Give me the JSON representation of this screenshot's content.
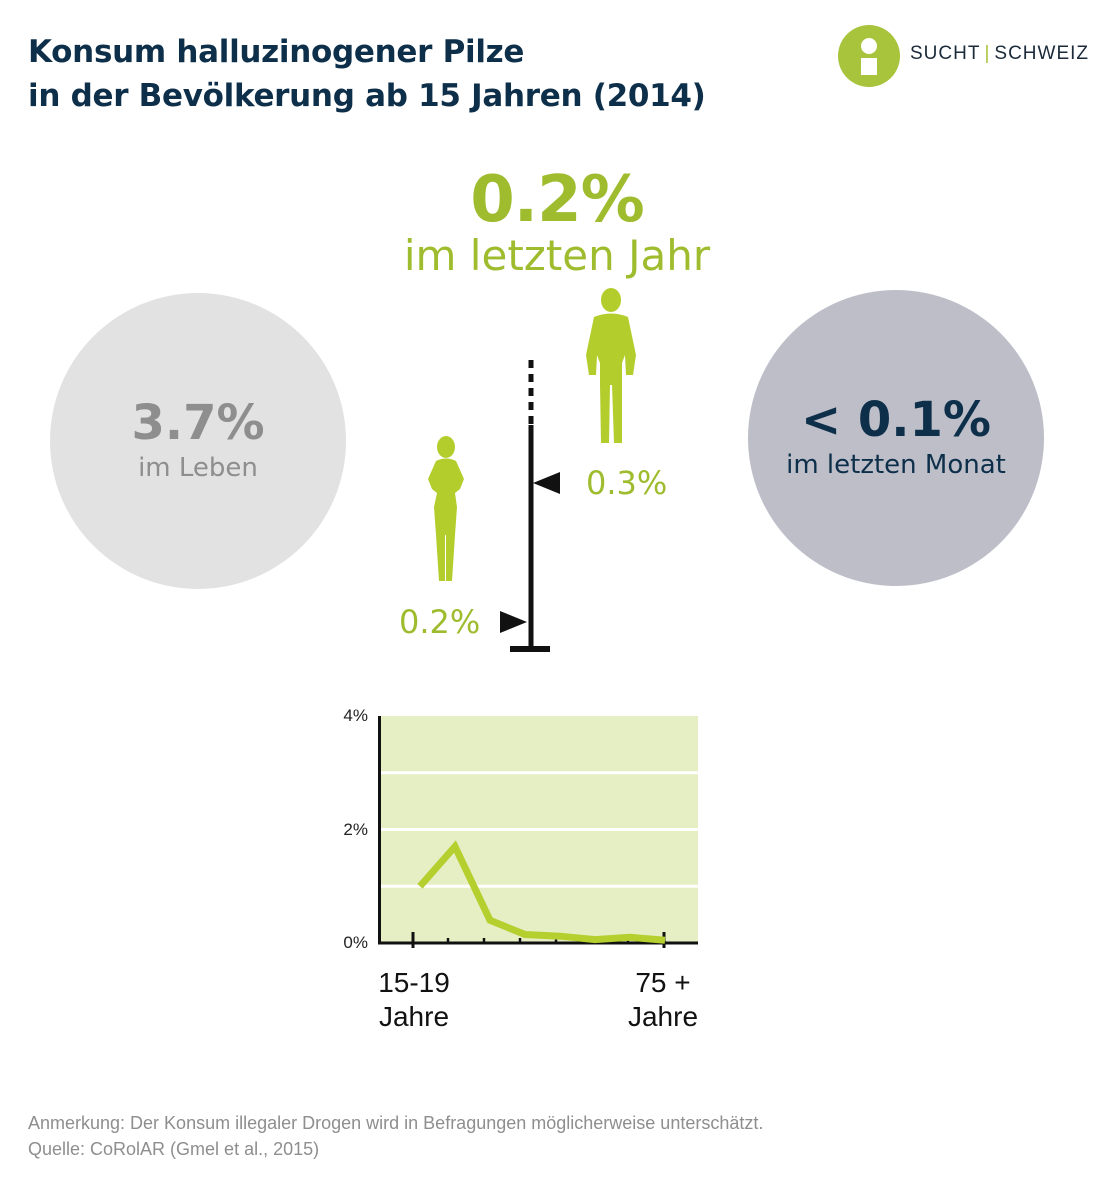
{
  "title": {
    "line1": "Konsum halluzinogener Pilze",
    "line2": "in der Bevölkerung ab 15 Jahren (2014)"
  },
  "logo": {
    "text_left": "SUCHT",
    "separator": "|",
    "text_right": "SCHWEIZ"
  },
  "headline_stat": {
    "value": "0.2%",
    "label": "im letzten Jahr"
  },
  "lifetime": {
    "value": "3.7%",
    "label": "im Leben"
  },
  "last_month": {
    "value": "< 0.1%",
    "label": "im letzten Monat"
  },
  "gender": {
    "male_value": "0.3%",
    "female_value": "0.2%"
  },
  "colors": {
    "accent_green": "#9ebc2e",
    "line_green": "#b5cf2e",
    "panel_green": "#e6eec4",
    "navy": "#0d2f4a",
    "light_gray": "#e2e2e2",
    "blue_gray": "#bdbec8"
  },
  "chart_data": {
    "type": "line",
    "y_ticks": [
      "0%",
      "2%",
      "4%"
    ],
    "ylim": [
      0,
      4
    ],
    "x_label_first": {
      "line1": "15-19",
      "line2": "Jahre"
    },
    "x_label_last": {
      "line1": "75 +",
      "line2": "Jahre"
    },
    "series": [
      {
        "values": [
          1.0,
          1.7,
          0.4,
          0.15,
          0.12,
          0.06,
          0.1,
          0.05
        ]
      }
    ],
    "grid": true
  },
  "footnote": {
    "note": "Anmerkung: Der Konsum illegaler Drogen wird in Befragungen möglicherweise unterschätzt.",
    "source": "Quelle: CoRolAR (Gmel et al., 2015)"
  }
}
